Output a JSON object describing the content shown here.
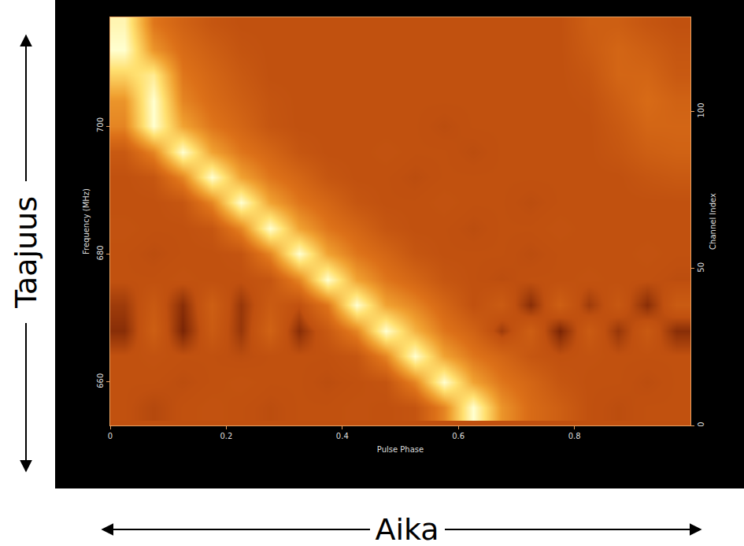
{
  "chart_data": {
    "type": "heatmap",
    "x_label": "Pulse Phase",
    "y_label": "Frequency (MHz)",
    "y2_label": "Channel Index",
    "x": [
      0.025,
      0.075,
      0.125,
      0.175,
      0.225,
      0.275,
      0.325,
      0.375,
      0.425,
      0.475,
      0.525,
      0.575,
      0.625,
      0.675,
      0.725,
      0.775,
      0.825,
      0.875,
      0.925,
      0.975
    ],
    "y": [
      656,
      660,
      664,
      668,
      672,
      676,
      680,
      684,
      688,
      692,
      696,
      700,
      704,
      708,
      712,
      716
    ],
    "cells": [
      [
        0.3,
        0.28,
        0.3,
        0.31,
        0.3,
        0.29,
        0.3,
        0.3,
        0.31,
        0.3,
        0.32,
        0.55,
        1.0,
        0.6,
        0.45,
        0.38,
        0.3,
        0.29,
        0.3,
        0.3
      ],
      [
        0.3,
        0.3,
        0.29,
        0.3,
        0.31,
        0.3,
        0.3,
        0.29,
        0.3,
        0.32,
        0.55,
        1.0,
        0.65,
        0.5,
        0.42,
        0.33,
        0.3,
        0.3,
        0.29,
        0.3
      ],
      [
        0.3,
        0.31,
        0.3,
        0.3,
        0.29,
        0.3,
        0.3,
        0.3,
        0.33,
        0.55,
        1.0,
        0.65,
        0.5,
        0.42,
        0.33,
        0.3,
        0.31,
        0.3,
        0.3,
        0.3
      ],
      [
        0.22,
        0.38,
        0.2,
        0.36,
        0.24,
        0.4,
        0.22,
        0.35,
        0.55,
        1.0,
        0.7,
        0.5,
        0.4,
        0.25,
        0.38,
        0.2,
        0.36,
        0.24,
        0.35,
        0.22
      ],
      [
        0.25,
        0.35,
        0.22,
        0.38,
        0.24,
        0.36,
        0.3,
        0.5,
        1.0,
        0.65,
        0.55,
        0.42,
        0.3,
        0.36,
        0.22,
        0.38,
        0.25,
        0.34,
        0.22,
        0.36
      ],
      [
        0.3,
        0.3,
        0.31,
        0.3,
        0.3,
        0.33,
        0.55,
        1.0,
        0.65,
        0.5,
        0.42,
        0.33,
        0.3,
        0.29,
        0.3,
        0.3,
        0.31,
        0.3,
        0.3,
        0.29
      ],
      [
        0.3,
        0.29,
        0.3,
        0.3,
        0.32,
        0.55,
        1.0,
        0.65,
        0.5,
        0.42,
        0.33,
        0.3,
        0.3,
        0.3,
        0.29,
        0.3,
        0.3,
        0.3,
        0.31,
        0.3
      ],
      [
        0.31,
        0.3,
        0.3,
        0.33,
        0.55,
        1.0,
        0.65,
        0.5,
        0.42,
        0.33,
        0.3,
        0.3,
        0.29,
        0.3,
        0.3,
        0.31,
        0.3,
        0.3,
        0.3,
        0.3
      ],
      [
        0.3,
        0.3,
        0.33,
        0.55,
        1.0,
        0.65,
        0.5,
        0.42,
        0.33,
        0.3,
        0.3,
        0.31,
        0.3,
        0.3,
        0.29,
        0.3,
        0.3,
        0.3,
        0.3,
        0.3
      ],
      [
        0.3,
        0.33,
        0.55,
        1.0,
        0.65,
        0.5,
        0.42,
        0.33,
        0.3,
        0.3,
        0.29,
        0.3,
        0.3,
        0.3,
        0.3,
        0.3,
        0.3,
        0.3,
        0.33,
        0.35
      ],
      [
        0.35,
        0.55,
        1.0,
        0.65,
        0.5,
        0.42,
        0.33,
        0.3,
        0.3,
        0.31,
        0.3,
        0.3,
        0.29,
        0.3,
        0.3,
        0.3,
        0.3,
        0.33,
        0.38,
        0.4
      ],
      [
        0.55,
        1.0,
        0.65,
        0.5,
        0.42,
        0.33,
        0.3,
        0.3,
        0.3,
        0.3,
        0.3,
        0.29,
        0.3,
        0.3,
        0.3,
        0.3,
        0.3,
        0.35,
        0.42,
        0.42
      ],
      [
        0.6,
        1.0,
        0.55,
        0.45,
        0.38,
        0.32,
        0.3,
        0.3,
        0.3,
        0.3,
        0.3,
        0.3,
        0.3,
        0.3,
        0.3,
        0.3,
        0.31,
        0.38,
        0.45,
        0.4
      ],
      [
        0.8,
        0.9,
        0.5,
        0.42,
        0.35,
        0.3,
        0.3,
        0.3,
        0.3,
        0.3,
        0.3,
        0.3,
        0.3,
        0.3,
        0.3,
        0.3,
        0.33,
        0.42,
        0.42,
        0.35
      ],
      [
        1.0,
        0.6,
        0.45,
        0.38,
        0.32,
        0.3,
        0.3,
        0.3,
        0.3,
        0.3,
        0.3,
        0.3,
        0.3,
        0.3,
        0.3,
        0.3,
        0.36,
        0.42,
        0.38,
        0.33
      ],
      [
        0.95,
        0.5,
        0.4,
        0.33,
        0.3,
        0.3,
        0.3,
        0.3,
        0.3,
        0.3,
        0.3,
        0.3,
        0.3,
        0.3,
        0.3,
        0.3,
        0.38,
        0.38,
        0.33,
        0.3
      ]
    ],
    "xlim": [
      0,
      1
    ],
    "xticks": [
      0,
      0.2,
      0.4,
      0.6,
      0.8
    ],
    "ylim": [
      653.2,
      717
    ],
    "yticks": [
      660,
      680,
      700
    ],
    "y2lim": [
      0,
      130
    ],
    "y2ticks": [
      0,
      50,
      100
    ]
  },
  "outer_labels": {
    "vertical": "Taajuus",
    "horizontal": "Aika"
  }
}
